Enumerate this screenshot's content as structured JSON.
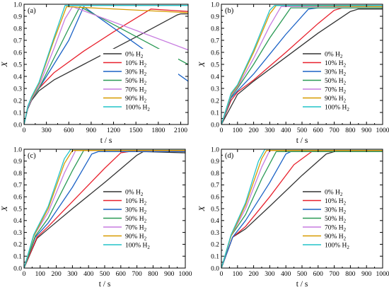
{
  "chart_data": [
    {
      "panel": "(a)",
      "type": "line",
      "xlabel": "t / s",
      "ylabel": "X",
      "xlim": [
        0,
        2200
      ],
      "ylim": [
        0,
        1.0
      ],
      "xticks": [
        0,
        300,
        600,
        900,
        1200,
        1500,
        1800,
        2100
      ],
      "yticks": [
        0.0,
        0.1,
        0.2,
        0.3,
        0.4,
        0.5,
        0.6,
        0.7,
        0.8,
        0.9,
        1.0
      ],
      "legend_position": "center-right",
      "series": [
        {
          "name": "0% H2",
          "name_main": "0% H",
          "color": "#333333",
          "points": [
            [
              0,
              0
            ],
            [
              50,
              0.13
            ],
            [
              100,
              0.2
            ],
            [
              200,
              0.28
            ],
            [
              400,
              0.37
            ],
            [
              800,
              0.5
            ],
            [
              1200,
              0.63
            ],
            [
              1600,
              0.76
            ],
            [
              2050,
              0.91
            ],
            [
              2100,
              0.92
            ],
            [
              2200,
              0.92
            ]
          ]
        },
        {
          "name": "10% H2",
          "name_main": "10% H",
          "color": "#e8212d",
          "points": [
            [
              0,
              0
            ],
            [
              50,
              0.14
            ],
            [
              100,
              0.21
            ],
            [
              200,
              0.3
            ],
            [
              400,
              0.43
            ],
            [
              800,
              0.61
            ],
            [
              1200,
              0.77
            ],
            [
              1700,
              0.96
            ],
            [
              2200,
              0.94
            ]
          ]
        },
        {
          "name": "30% H2",
          "name_main": "30% H",
          "color": "#1b62c6",
          "points": [
            [
              0,
              0
            ],
            [
              50,
              0.14
            ],
            [
              100,
              0.21
            ],
            [
              200,
              0.3
            ],
            [
              400,
              0.5
            ],
            [
              600,
              0.7
            ],
            [
              800,
              0.98
            ],
            [
              2200,
              0.36
            ]
          ]
        },
        {
          "name": "50% H2",
          "name_main": "50% H",
          "color": "#2a9a55",
          "points": [
            [
              0,
              0
            ],
            [
              50,
              0.14
            ],
            [
              100,
              0.21
            ],
            [
              200,
              0.3
            ],
            [
              400,
              0.55
            ],
            [
              600,
              0.8
            ],
            [
              750,
              0.98
            ],
            [
              2200,
              0.5
            ]
          ]
        },
        {
          "name": "70% H2",
          "name_main": "70% H",
          "color": "#c77ce0",
          "points": [
            [
              0,
              0
            ],
            [
              50,
              0.14
            ],
            [
              100,
              0.21
            ],
            [
              200,
              0.32
            ],
            [
              400,
              0.63
            ],
            [
              550,
              0.88
            ],
            [
              650,
              0.98
            ],
            [
              2200,
              0.62
            ]
          ]
        },
        {
          "name": "90% H2",
          "name_main": "90% H",
          "color": "#d79a00",
          "points": [
            [
              0,
              0
            ],
            [
              50,
              0.15
            ],
            [
              100,
              0.22
            ],
            [
              200,
              0.34
            ],
            [
              400,
              0.7
            ],
            [
              570,
              0.98
            ],
            [
              2200,
              0.93
            ]
          ]
        },
        {
          "name": "100% H2",
          "name_main": "100% H",
          "color": "#22c3c9",
          "points": [
            [
              0,
              0
            ],
            [
              50,
              0.15
            ],
            [
              100,
              0.23
            ],
            [
              200,
              0.35
            ],
            [
              400,
              0.72
            ],
            [
              550,
              0.99
            ],
            [
              2200,
              0.99
            ]
          ]
        }
      ]
    },
    {
      "panel": "(b)",
      "type": "line",
      "xlabel": "t / s",
      "ylabel": "X",
      "xlim": [
        0,
        1000
      ],
      "ylim": [
        0,
        1.0
      ],
      "xticks": [
        0,
        100,
        200,
        300,
        400,
        500,
        600,
        700,
        800,
        900,
        1000
      ],
      "yticks": [
        0.0,
        0.1,
        0.2,
        0.3,
        0.4,
        0.5,
        0.6,
        0.7,
        0.8,
        0.9,
        1.0
      ],
      "legend_position": "center-right",
      "series": [
        {
          "name": "0% H2",
          "name_main": "0% H",
          "color": "#333333",
          "points": [
            [
              0,
              0
            ],
            [
              100,
              0.25
            ],
            [
              200,
              0.36
            ],
            [
              400,
              0.56
            ],
            [
              600,
              0.76
            ],
            [
              800,
              0.94
            ],
            [
              850,
              0.96
            ],
            [
              1000,
              0.96
            ]
          ]
        },
        {
          "name": "10% H2",
          "name_main": "10% H",
          "color": "#e8212d",
          "points": [
            [
              0,
              0
            ],
            [
              60,
              0.2
            ],
            [
              100,
              0.27
            ],
            [
              200,
              0.37
            ],
            [
              400,
              0.6
            ],
            [
              600,
              0.84
            ],
            [
              700,
              0.95
            ],
            [
              750,
              0.97
            ],
            [
              1000,
              0.97
            ]
          ]
        },
        {
          "name": "30% H2",
          "name_main": "30% H",
          "color": "#1b62c6",
          "points": [
            [
              0,
              0
            ],
            [
              60,
              0.22
            ],
            [
              100,
              0.28
            ],
            [
              200,
              0.42
            ],
            [
              400,
              0.75
            ],
            [
              540,
              0.96
            ],
            [
              600,
              0.97
            ],
            [
              1000,
              0.97
            ]
          ]
        },
        {
          "name": "50% H2",
          "name_main": "50% H",
          "color": "#2a9a55",
          "points": [
            [
              0,
              0
            ],
            [
              60,
              0.23
            ],
            [
              100,
              0.3
            ],
            [
              200,
              0.5
            ],
            [
              300,
              0.72
            ],
            [
              430,
              0.97
            ],
            [
              1000,
              0.97
            ]
          ]
        },
        {
          "name": "70% H2",
          "name_main": "70% H",
          "color": "#c77ce0",
          "points": [
            [
              0,
              0
            ],
            [
              60,
              0.24
            ],
            [
              100,
              0.31
            ],
            [
              200,
              0.55
            ],
            [
              300,
              0.82
            ],
            [
              370,
              0.98
            ],
            [
              1000,
              0.98
            ]
          ]
        },
        {
          "name": "90% H2",
          "name_main": "90% H",
          "color": "#d79a00",
          "points": [
            [
              0,
              0
            ],
            [
              60,
              0.25
            ],
            [
              100,
              0.32
            ],
            [
              200,
              0.6
            ],
            [
              300,
              0.92
            ],
            [
              340,
              0.99
            ],
            [
              1000,
              0.98
            ]
          ]
        },
        {
          "name": "100% H2",
          "name_main": "100% H",
          "color": "#22c3c9",
          "points": [
            [
              0,
              0
            ],
            [
              60,
              0.26
            ],
            [
              100,
              0.33
            ],
            [
              200,
              0.62
            ],
            [
              300,
              0.95
            ],
            [
              330,
              0.99
            ],
            [
              1000,
              0.99
            ]
          ]
        }
      ]
    },
    {
      "panel": "(c)",
      "type": "line",
      "xlabel": "t / s",
      "ylabel": "X",
      "xlim": [
        0,
        1000
      ],
      "ylim": [
        0,
        1.0
      ],
      "xticks": [
        0,
        100,
        200,
        300,
        400,
        500,
        600,
        700,
        800,
        900,
        1000
      ],
      "yticks": [
        0.0,
        0.1,
        0.2,
        0.3,
        0.4,
        0.5,
        0.6,
        0.7,
        0.8,
        0.9,
        1.0
      ],
      "legend_position": "center-right",
      "series": [
        {
          "name": "0% H2",
          "name_main": "0% H",
          "color": "#333333",
          "points": [
            [
              0,
              0
            ],
            [
              80,
              0.25
            ],
            [
              150,
              0.33
            ],
            [
              300,
              0.5
            ],
            [
              500,
              0.72
            ],
            [
              700,
              0.95
            ],
            [
              740,
              0.98
            ],
            [
              1000,
              0.97
            ]
          ]
        },
        {
          "name": "10% H2",
          "name_main": "10% H",
          "color": "#e8212d",
          "points": [
            [
              0,
              0
            ],
            [
              80,
              0.26
            ],
            [
              150,
              0.35
            ],
            [
              300,
              0.56
            ],
            [
              500,
              0.84
            ],
            [
              600,
              0.97
            ],
            [
              650,
              0.98
            ],
            [
              1000,
              0.98
            ]
          ]
        },
        {
          "name": "30% H2",
          "name_main": "30% H",
          "color": "#1b62c6",
          "points": [
            [
              0,
              0
            ],
            [
              70,
              0.26
            ],
            [
              150,
              0.38
            ],
            [
              300,
              0.68
            ],
            [
              420,
              0.96
            ],
            [
              460,
              0.98
            ],
            [
              1000,
              0.98
            ]
          ]
        },
        {
          "name": "50% H2",
          "name_main": "50% H",
          "color": "#2a9a55",
          "points": [
            [
              0,
              0
            ],
            [
              70,
              0.27
            ],
            [
              150,
              0.42
            ],
            [
              300,
              0.82
            ],
            [
              370,
              0.99
            ],
            [
              1000,
              0.99
            ]
          ]
        },
        {
          "name": "70% H2",
          "name_main": "70% H",
          "color": "#c77ce0",
          "points": [
            [
              0,
              0
            ],
            [
              60,
              0.27
            ],
            [
              150,
              0.47
            ],
            [
              250,
              0.8
            ],
            [
              320,
              0.99
            ],
            [
              1000,
              0.99
            ]
          ]
        },
        {
          "name": "90% H2",
          "name_main": "90% H",
          "color": "#d79a00",
          "points": [
            [
              0,
              0
            ],
            [
              60,
              0.27
            ],
            [
              150,
              0.5
            ],
            [
              250,
              0.88
            ],
            [
              300,
              0.99
            ],
            [
              1000,
              0.99
            ]
          ]
        },
        {
          "name": "100% H2",
          "name_main": "100% H",
          "color": "#22c3c9",
          "points": [
            [
              0,
              0
            ],
            [
              60,
              0.28
            ],
            [
              150,
              0.52
            ],
            [
              250,
              0.92
            ],
            [
              290,
              1.0
            ],
            [
              1000,
              1.0
            ]
          ]
        }
      ]
    },
    {
      "panel": "(d)",
      "type": "line",
      "xlabel": "t / s",
      "ylabel": "X",
      "xlim": [
        0,
        1000
      ],
      "ylim": [
        0,
        1.0
      ],
      "xticks": [
        0,
        100,
        200,
        300,
        400,
        500,
        600,
        700,
        800,
        900,
        1000
      ],
      "yticks": [
        0.0,
        0.1,
        0.2,
        0.3,
        0.4,
        0.5,
        0.6,
        0.7,
        0.8,
        0.9,
        1.0
      ],
      "legend_position": "center-right",
      "series": [
        {
          "name": "0% H2",
          "name_main": "0% H",
          "color": "#333333",
          "points": [
            [
              0,
              0
            ],
            [
              70,
              0.26
            ],
            [
              150,
              0.33
            ],
            [
              300,
              0.52
            ],
            [
              500,
              0.78
            ],
            [
              650,
              0.96
            ],
            [
              700,
              0.98
            ],
            [
              1000,
              0.98
            ]
          ]
        },
        {
          "name": "10% H2",
          "name_main": "10% H",
          "color": "#e8212d",
          "points": [
            [
              0,
              0
            ],
            [
              70,
              0.26
            ],
            [
              150,
              0.35
            ],
            [
              300,
              0.6
            ],
            [
              450,
              0.87
            ],
            [
              560,
              0.98
            ],
            [
              1000,
              0.98
            ]
          ]
        },
        {
          "name": "30% H2",
          "name_main": "30% H",
          "color": "#1b62c6",
          "points": [
            [
              0,
              0
            ],
            [
              70,
              0.26
            ],
            [
              150,
              0.4
            ],
            [
              300,
              0.72
            ],
            [
              400,
              0.96
            ],
            [
              430,
              0.98
            ],
            [
              1000,
              0.98
            ]
          ]
        },
        {
          "name": "50% H2",
          "name_main": "50% H",
          "color": "#2a9a55",
          "points": [
            [
              0,
              0
            ],
            [
              60,
              0.27
            ],
            [
              150,
              0.45
            ],
            [
              250,
              0.75
            ],
            [
              340,
              0.98
            ],
            [
              1000,
              0.98
            ]
          ]
        },
        {
          "name": "70% H2",
          "name_main": "70% H",
          "color": "#c77ce0",
          "points": [
            [
              0,
              0
            ],
            [
              60,
              0.27
            ],
            [
              150,
              0.5
            ],
            [
              250,
              0.85
            ],
            [
              300,
              0.99
            ],
            [
              1000,
              0.99
            ]
          ]
        },
        {
          "name": "90% H2",
          "name_main": "90% H",
          "color": "#d79a00",
          "points": [
            [
              0,
              0
            ],
            [
              60,
              0.27
            ],
            [
              150,
              0.53
            ],
            [
              250,
              0.92
            ],
            [
              280,
              0.99
            ],
            [
              1000,
              0.99
            ]
          ]
        },
        {
          "name": "100% H2",
          "name_main": "100% H",
          "color": "#22c3c9",
          "points": [
            [
              0,
              0
            ],
            [
              60,
              0.28
            ],
            [
              150,
              0.55
            ],
            [
              230,
              0.9
            ],
            [
              270,
              1.0
            ],
            [
              1000,
              1.0
            ]
          ]
        }
      ]
    }
  ]
}
